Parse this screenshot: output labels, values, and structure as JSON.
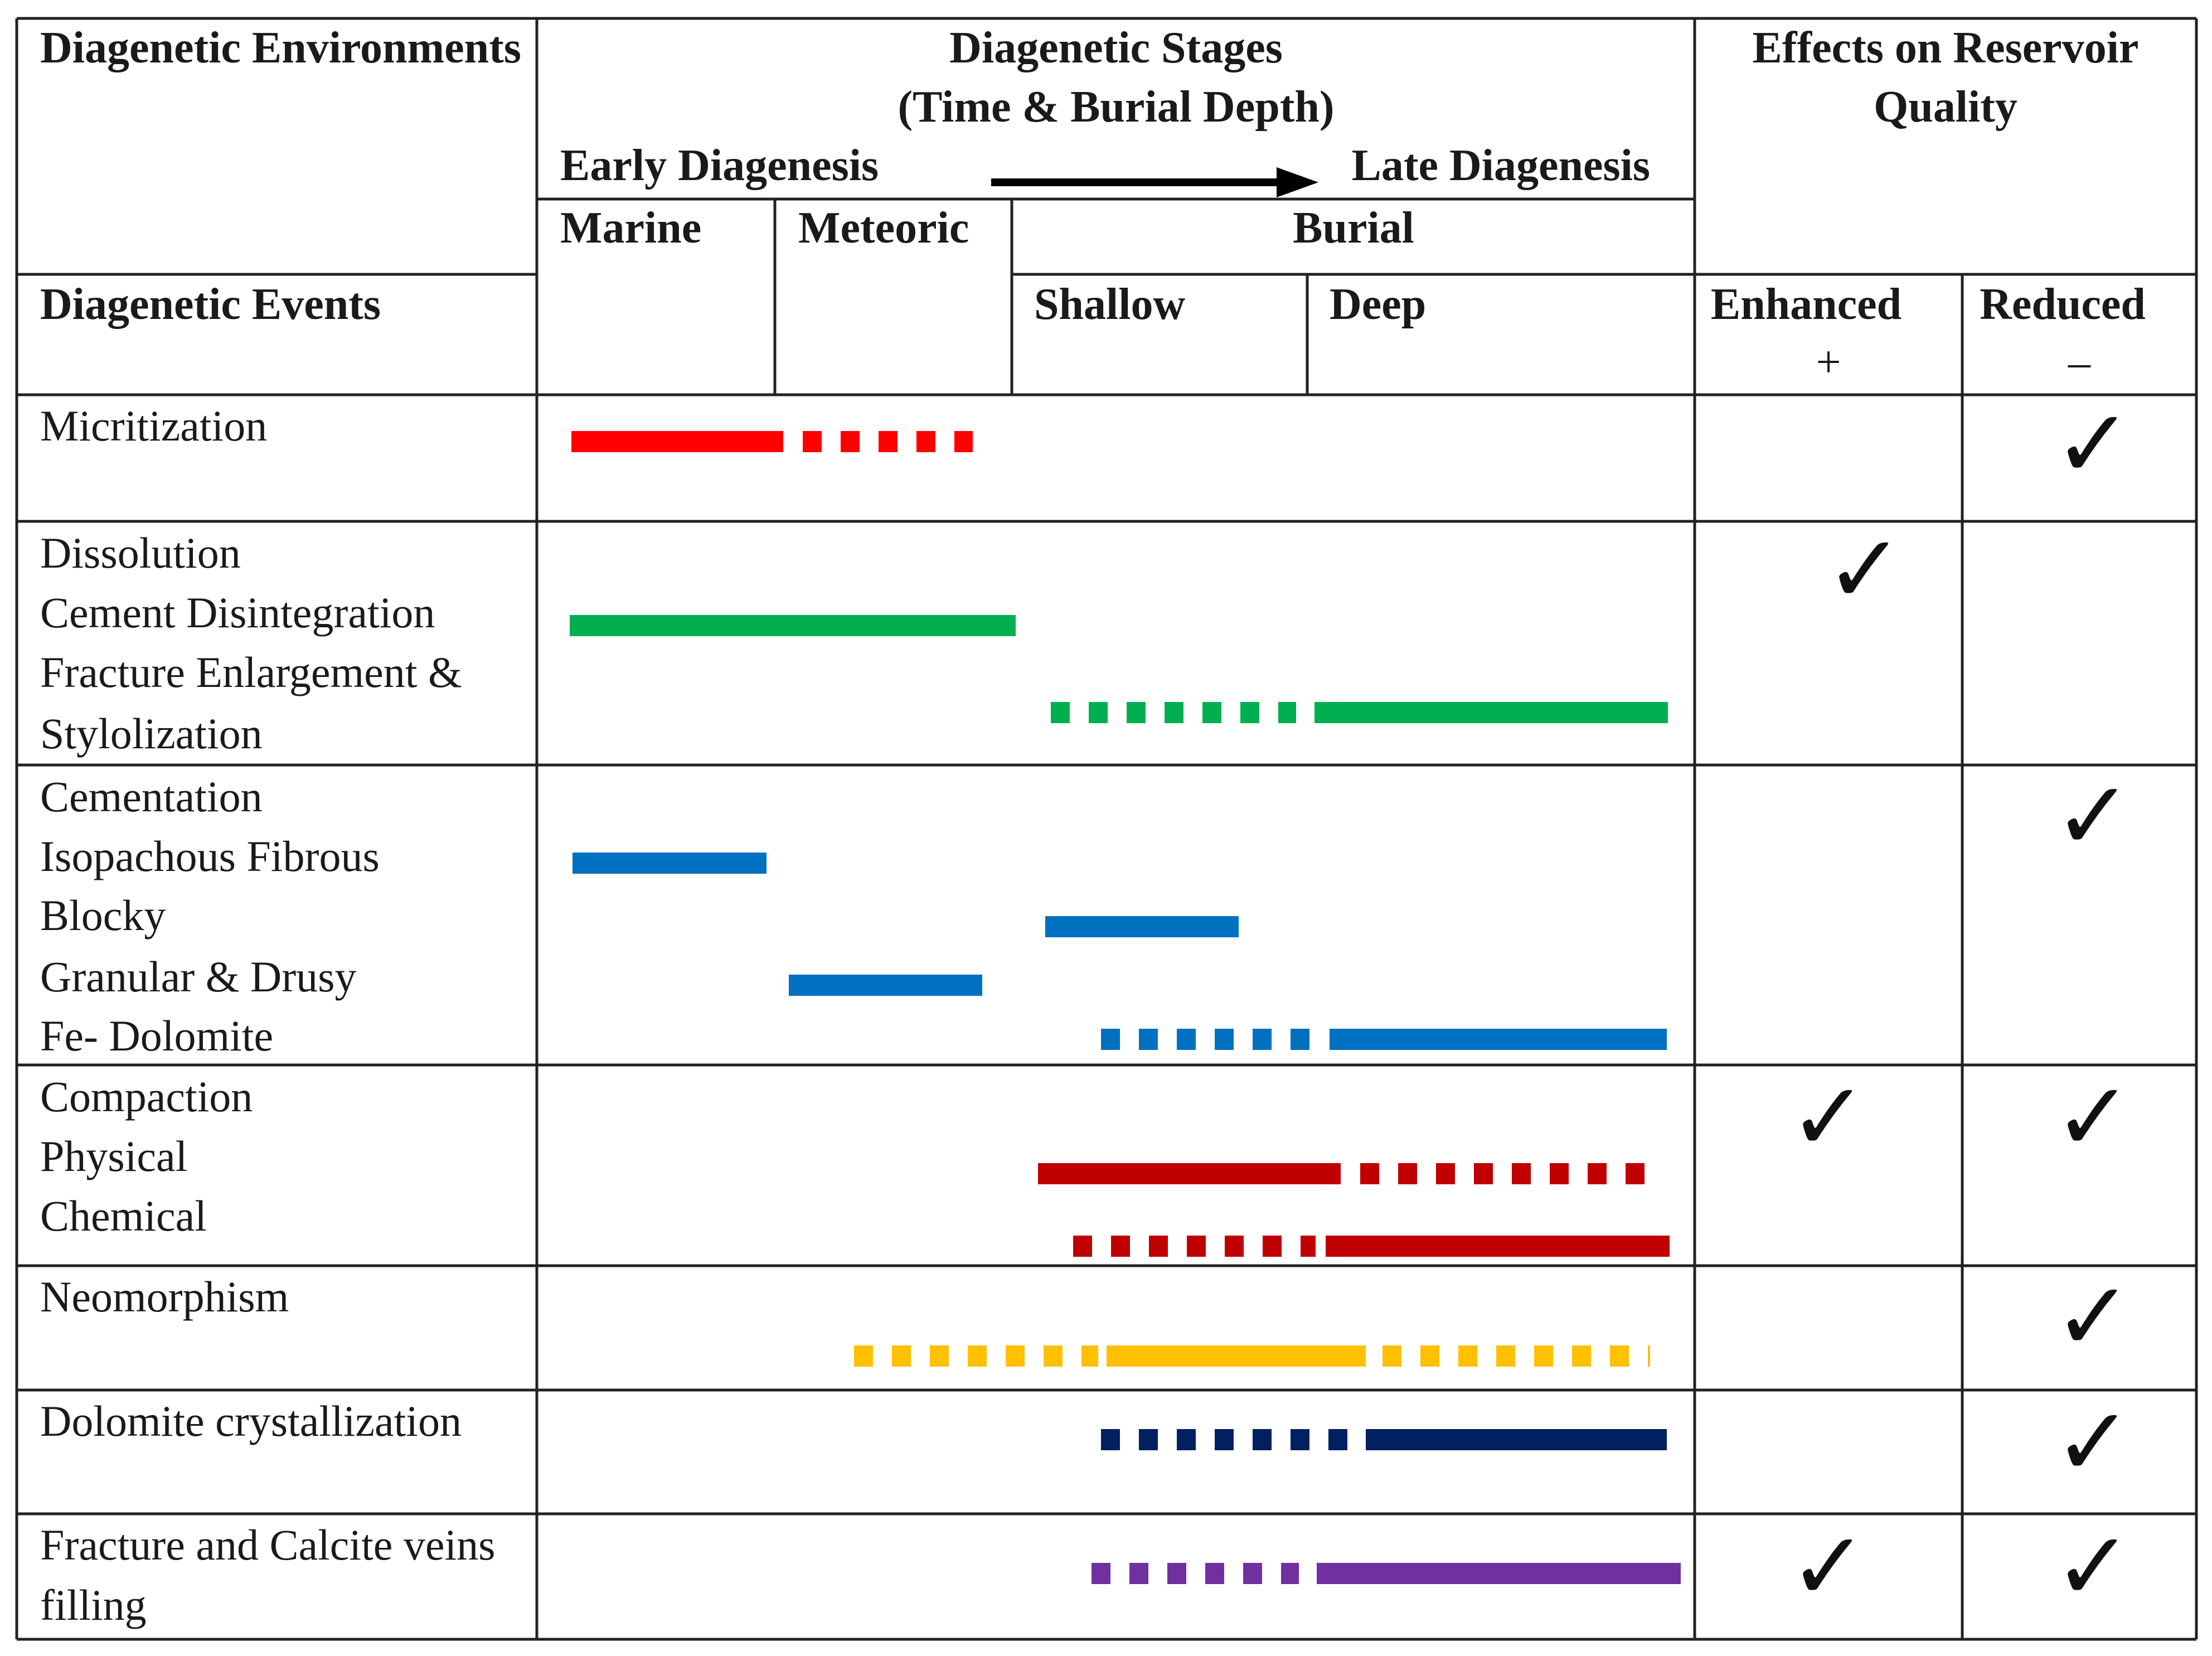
{
  "headers": {
    "environments": "Diagenetic Environments",
    "events": "Diagenetic Events",
    "stages_line1": "Diagenetic Stages",
    "stages_line2": "(Time & Burial Depth)",
    "early": "Early Diagenesis",
    "late": "Late Diagenesis",
    "effects_line1": "Effects on Reservoir",
    "effects_line2": "Quality",
    "marine": "Marine",
    "meteoric": "Meteoric",
    "burial": "Burial",
    "shallow": "Shallow",
    "deep": "Deep",
    "enhanced": "Enhanced",
    "enhanced_sign": "+",
    "reduced": "Reduced",
    "reduced_sign": "–"
  },
  "check_symbol": "✓",
  "colors": {
    "micritization": "#ff0000",
    "dissolution": "#00b050",
    "cementation": "#0070c0",
    "compaction": "#c00000",
    "neomorphism": "#ffc000",
    "dolomite": "#002060",
    "fracture": "#7030a0"
  },
  "events": [
    {
      "lines": [
        "Micritization"
      ],
      "enhanced": false,
      "reduced": true
    },
    {
      "lines": [
        "Dissolution",
        "Cement Disintegration",
        "Fracture Enlargement &",
        "Stylolization"
      ],
      "enhanced": true,
      "reduced": false
    },
    {
      "lines": [
        "Cementation",
        "Isopachous Fibrous",
        "Blocky",
        "Granular & Drusy",
        "Fe- Dolomite"
      ],
      "enhanced": false,
      "reduced": true
    },
    {
      "lines": [
        "Compaction",
        "Physical",
        "Chemical"
      ],
      "enhanced": true,
      "reduced": true
    },
    {
      "lines": [
        "Neomorphism"
      ],
      "enhanced": false,
      "reduced": true
    },
    {
      "lines": [
        "Dolomite crystallization"
      ],
      "enhanced": false,
      "reduced": true
    },
    {
      "lines": [
        "Fracture and Calcite veins",
        "filling"
      ],
      "enhanced": true,
      "reduced": true
    }
  ]
}
